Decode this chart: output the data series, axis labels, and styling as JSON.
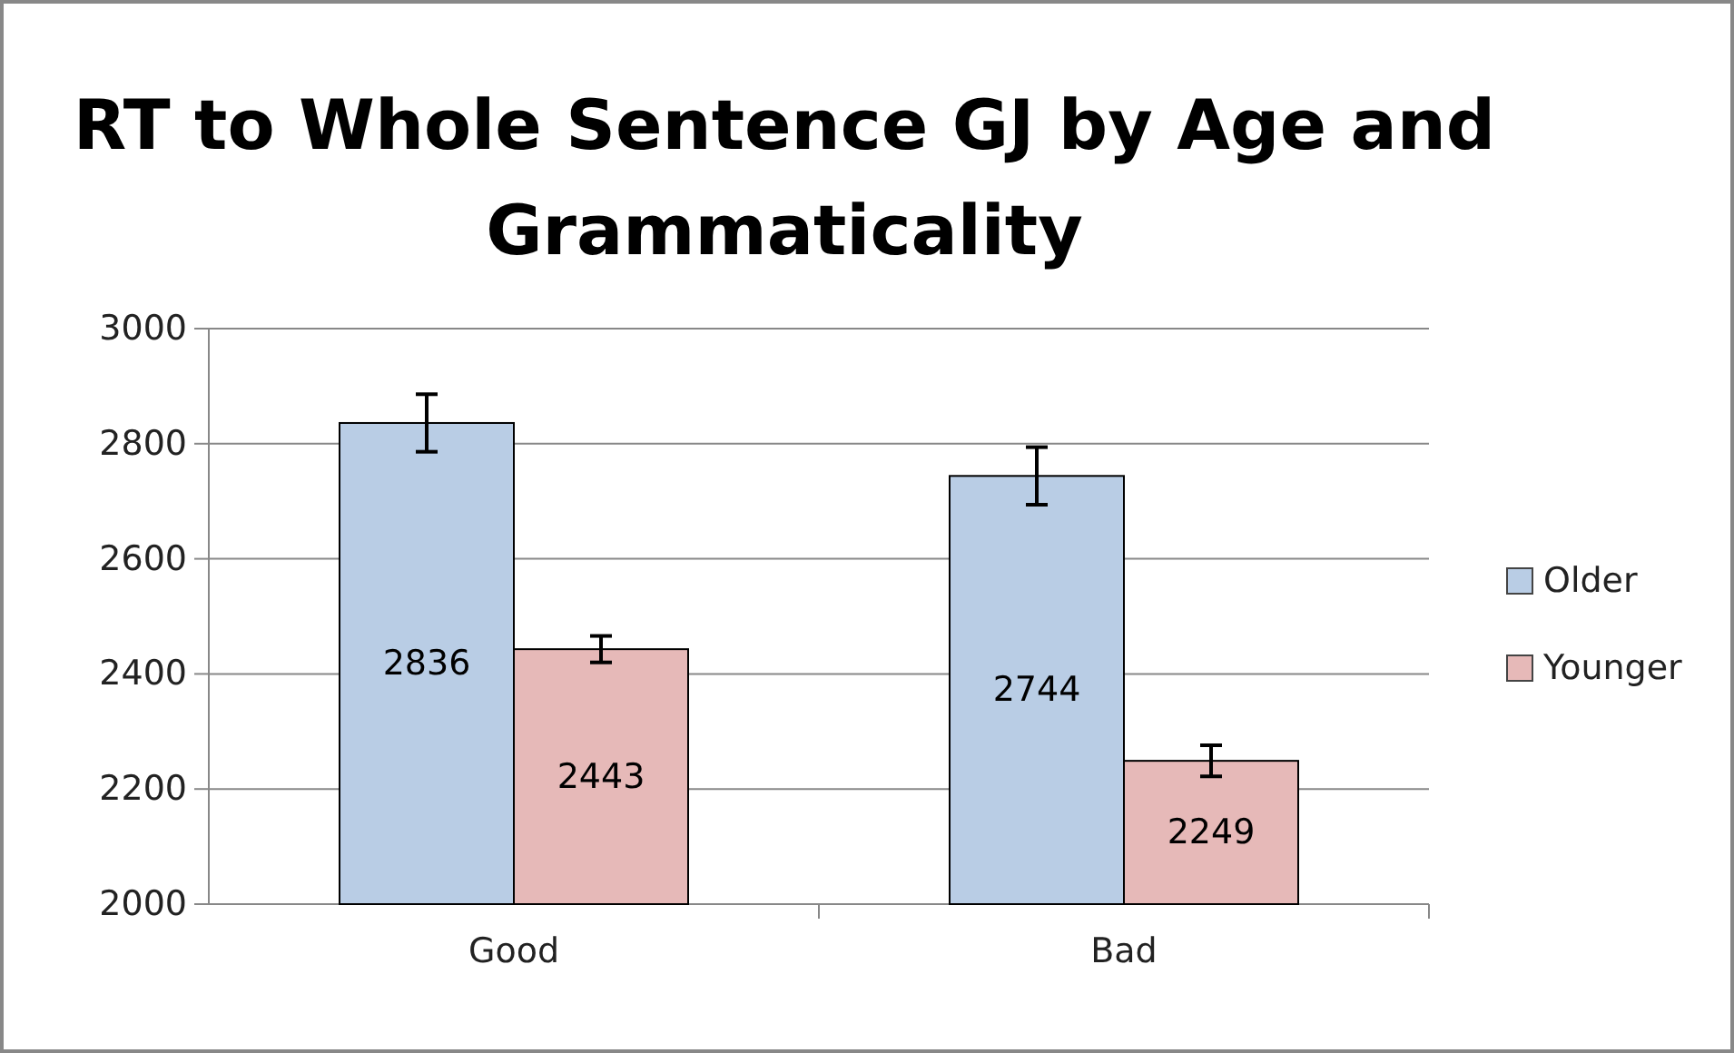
{
  "chart_data": {
    "type": "bar",
    "title": "RT to Whole Sentence GJ by Age and Grammaticality",
    "categories": [
      "Good",
      "Bad"
    ],
    "series": [
      {
        "name": "Older",
        "color": "#b9cde5",
        "values": [
          2836,
          2744
        ],
        "errors": [
          50,
          50
        ]
      },
      {
        "name": "Younger",
        "color": "#e6b9b8",
        "values": [
          2443,
          2249
        ],
        "errors": [
          23,
          27
        ]
      }
    ],
    "ylim": [
      2000,
      3000
    ],
    "yticks": [
      2000,
      2200,
      2400,
      2600,
      2800,
      3000
    ],
    "grid": "y",
    "legend": "right",
    "data_labels": true
  }
}
